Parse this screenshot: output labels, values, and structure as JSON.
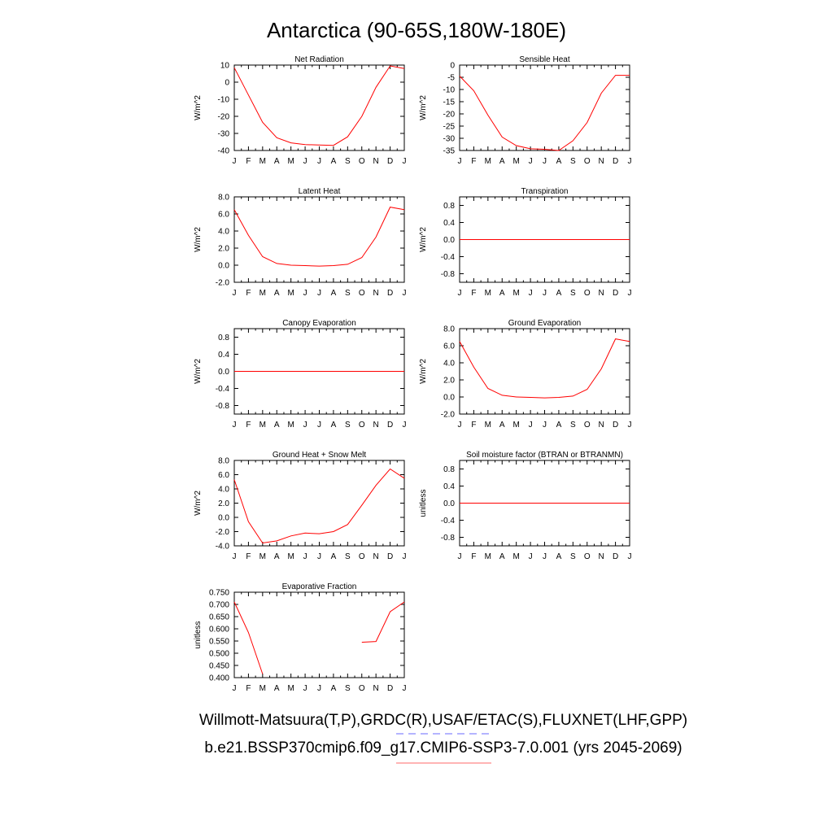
{
  "figure": {
    "title": "Antarctica (90-65S,180W-180E)",
    "footer_line1": "Willmott-Matsuura(T,P),GRDC(R),USAF/ETAC(S),FLUXNET(LHF,GPP)",
    "footer_line2": "b.e21.BSSP370cmip6.f09_g17.CMIP6-SSP3-7.0.001 (yrs 2045-2069)",
    "legend_line1_color": "#8888ff",
    "legend_line2_color": "#ff8888",
    "series_color": "#ff0000"
  },
  "chart_data": [
    {
      "type": "line",
      "title": "Net Radiation",
      "ylabel": "W/m^2",
      "x": [
        "J",
        "F",
        "M",
        "A",
        "M",
        "J",
        "J",
        "A",
        "S",
        "O",
        "N",
        "D",
        "J"
      ],
      "ylim": [
        -40,
        10
      ],
      "yticks": [
        10,
        0,
        -10,
        -20,
        -30,
        -40
      ],
      "ytick_labels": [
        "10",
        "0",
        "-10",
        "-20",
        "-30",
        "-40"
      ],
      "values": [
        8.5,
        -7.5,
        -23.5,
        -32.5,
        -35.5,
        -36.5,
        -36.8,
        -37.0,
        -32.0,
        -20.0,
        -3.0,
        9.5,
        8.0
      ]
    },
    {
      "type": "line",
      "title": "Sensible Heat",
      "ylabel": "W/m^2",
      "x": [
        "J",
        "F",
        "M",
        "A",
        "M",
        "J",
        "J",
        "A",
        "S",
        "O",
        "N",
        "D",
        "J"
      ],
      "ylim": [
        -35,
        0
      ],
      "yticks": [
        0,
        -5,
        -10,
        -15,
        -20,
        -25,
        -30,
        -35
      ],
      "ytick_labels": [
        "0",
        "-5",
        "-10",
        "-15",
        "-20",
        "-25",
        "-30",
        "-35"
      ],
      "values": [
        -4.5,
        -10.5,
        -20.5,
        -29.5,
        -33.0,
        -34.3,
        -34.5,
        -35.0,
        -31.0,
        -23.5,
        -11.5,
        -4.2,
        -4.2
      ]
    },
    {
      "type": "line",
      "title": "Latent Heat",
      "ylabel": "W/m^2",
      "x": [
        "J",
        "F",
        "M",
        "A",
        "M",
        "J",
        "J",
        "A",
        "S",
        "O",
        "N",
        "D",
        "J"
      ],
      "ylim": [
        -2,
        8
      ],
      "yticks": [
        8,
        6,
        4,
        2,
        0,
        -2
      ],
      "ytick_labels": [
        "8.0",
        "6.0",
        "4.0",
        "2.0",
        "0.0",
        "-2.0"
      ],
      "values": [
        6.5,
        3.5,
        1.0,
        0.2,
        0.0,
        -0.05,
        -0.1,
        -0.05,
        0.1,
        0.9,
        3.3,
        6.8,
        6.5
      ]
    },
    {
      "type": "line",
      "title": "Transpiration",
      "ylabel": "W/m^2",
      "x": [
        "J",
        "F",
        "M",
        "A",
        "M",
        "J",
        "J",
        "A",
        "S",
        "O",
        "N",
        "D",
        "J"
      ],
      "ylim": [
        -1,
        1
      ],
      "yticks": [
        0.8,
        0.4,
        0,
        -0.4,
        -0.8
      ],
      "ytick_labels": [
        "0.8",
        "0.4",
        "0.0",
        "-0.4",
        "-0.8"
      ],
      "values": [
        0,
        0,
        0,
        0,
        0,
        0,
        0,
        0,
        0,
        0,
        0,
        0,
        0
      ]
    },
    {
      "type": "line",
      "title": "Canopy Evaporation",
      "ylabel": "W/m^2",
      "x": [
        "J",
        "F",
        "M",
        "A",
        "M",
        "J",
        "J",
        "A",
        "S",
        "O",
        "N",
        "D",
        "J"
      ],
      "ylim": [
        -1,
        1
      ],
      "yticks": [
        0.8,
        0.4,
        0,
        -0.4,
        -0.8
      ],
      "ytick_labels": [
        "0.8",
        "0.4",
        "0.0",
        "-0.4",
        "-0.8"
      ],
      "values": [
        0,
        0,
        0,
        0,
        0,
        0,
        0,
        0,
        0,
        0,
        0,
        0,
        0
      ]
    },
    {
      "type": "line",
      "title": "Ground Evaporation",
      "ylabel": "W/m^2",
      "x": [
        "J",
        "F",
        "M",
        "A",
        "M",
        "J",
        "J",
        "A",
        "S",
        "O",
        "N",
        "D",
        "J"
      ],
      "ylim": [
        -2,
        8
      ],
      "yticks": [
        8,
        6,
        4,
        2,
        0,
        -2
      ],
      "ytick_labels": [
        "8.0",
        "6.0",
        "4.0",
        "2.0",
        "0.0",
        "-2.0"
      ],
      "values": [
        6.5,
        3.5,
        1.0,
        0.2,
        0.0,
        -0.05,
        -0.1,
        -0.05,
        0.1,
        0.9,
        3.3,
        6.8,
        6.5
      ]
    },
    {
      "type": "line",
      "title": "Ground Heat + Snow Melt",
      "ylabel": "W/m^2",
      "x": [
        "J",
        "F",
        "M",
        "A",
        "M",
        "J",
        "J",
        "A",
        "S",
        "O",
        "N",
        "D",
        "J"
      ],
      "ylim": [
        -4,
        8
      ],
      "yticks": [
        8,
        6,
        4,
        2,
        0,
        -2,
        -4
      ],
      "ytick_labels": [
        "8.0",
        "6.0",
        "4.0",
        "2.0",
        "0.0",
        "-2.0",
        "-4.0"
      ],
      "values": [
        5.3,
        -0.6,
        -3.6,
        -3.3,
        -2.6,
        -2.2,
        -2.3,
        -2.0,
        -1.0,
        1.7,
        4.5,
        6.8,
        5.5
      ]
    },
    {
      "type": "line",
      "title": "Soil moisture factor (BTRAN or BTRANMN)",
      "ylabel": "unitless",
      "x": [
        "J",
        "F",
        "M",
        "A",
        "M",
        "J",
        "J",
        "A",
        "S",
        "O",
        "N",
        "D",
        "J"
      ],
      "ylim": [
        -1,
        1
      ],
      "yticks": [
        0.8,
        0.4,
        0,
        -0.4,
        -0.8
      ],
      "ytick_labels": [
        "0.8",
        "0.4",
        "0.0",
        "-0.4",
        "-0.8"
      ],
      "values": [
        0,
        0,
        0,
        0,
        0,
        0,
        0,
        0,
        0,
        0,
        0,
        0,
        0
      ]
    },
    {
      "type": "line",
      "title": "Evaporative Fraction",
      "ylabel": "unitless",
      "x": [
        "J",
        "F",
        "M",
        "A",
        "M",
        "J",
        "J",
        "A",
        "S",
        "O",
        "N",
        "D",
        "J"
      ],
      "ylim": [
        0.4,
        0.75
      ],
      "yticks": [
        0.75,
        0.7,
        0.65,
        0.6,
        0.55,
        0.5,
        0.45,
        0.4
      ],
      "ytick_labels": [
        "0.750",
        "0.700",
        "0.650",
        "0.600",
        "0.550",
        "0.500",
        "0.450",
        "0.400"
      ],
      "values": [
        0.71,
        0.585,
        0.415,
        null,
        null,
        null,
        null,
        null,
        null,
        0.545,
        0.548,
        0.67,
        0.71
      ]
    }
  ]
}
